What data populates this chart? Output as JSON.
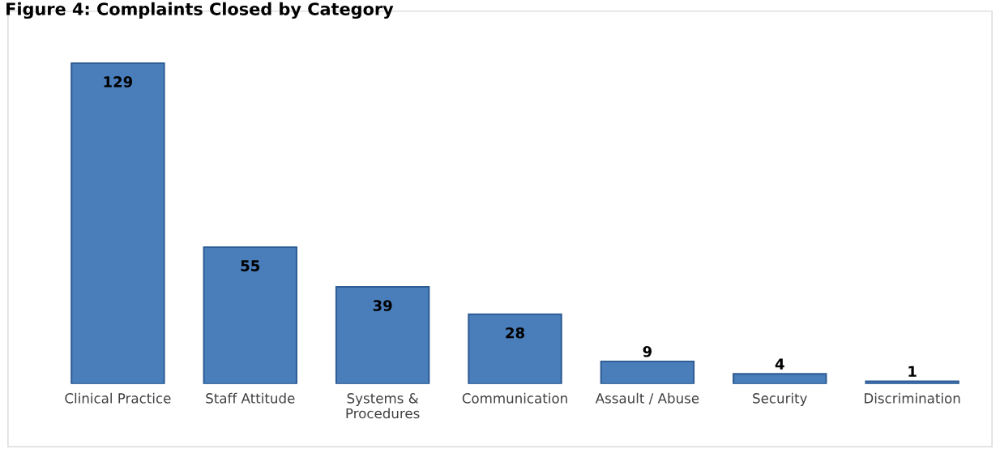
{
  "chart_data": {
    "type": "bar",
    "title": "Figure 4: Complaints Closed by Category",
    "categories": [
      "Clinical Practice",
      "Staff Attitude",
      "Systems &\nProcedures",
      "Communication",
      "Assault / Abuse",
      "Security",
      "Discrimination"
    ],
    "values": [
      129,
      55,
      39,
      28,
      9,
      4,
      1
    ],
    "color": "#4a7ebb",
    "data_labels": true,
    "grid": false,
    "legend": false
  }
}
